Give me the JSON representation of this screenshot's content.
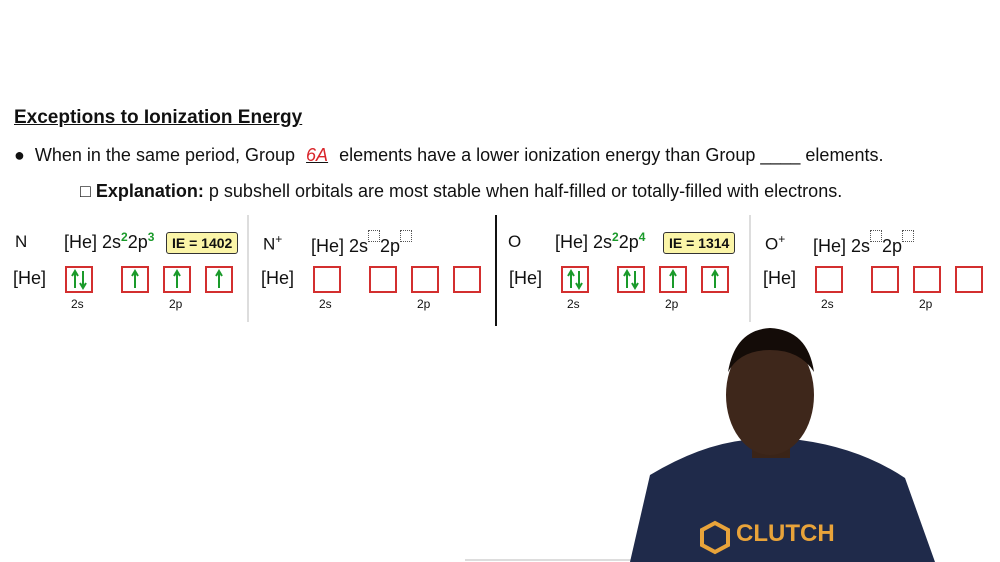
{
  "header": {
    "title": "Exceptions to Ionization Energy"
  },
  "bullet": {
    "before": "When in the same period, Group",
    "handwritten_answer": "6A",
    "middle": "elements have a lower ionization energy than Group",
    "blank": "____",
    "after": "elements."
  },
  "explanation": {
    "label": "Explanation:",
    "text": "p subshell orbitals are most stable when half-filled or totally-filled with electrons."
  },
  "panels": [
    {
      "symbol": "N",
      "core": "[He]",
      "s_orbital": "2s",
      "s_electrons": "2",
      "p_orbital": "2p",
      "p_electrons": "3",
      "ie": "IE = 1402",
      "diagram_core": "[He]",
      "s_label": "2s",
      "p_label": "2p"
    },
    {
      "symbol": "N",
      "charge": "+",
      "core": "[He]",
      "s_orbital": "2s",
      "p_orbital": "2p",
      "diagram_core": "[He]",
      "s_label": "2s",
      "p_label": "2p"
    },
    {
      "symbol": "O",
      "core": "[He]",
      "s_orbital": "2s",
      "s_electrons": "2",
      "p_orbital": "2p",
      "p_electrons": "4",
      "ie": "IE = 1314",
      "diagram_core": "[He]",
      "s_label": "2s",
      "p_label": "2p"
    },
    {
      "symbol": "O",
      "charge": "+",
      "core": "[He]",
      "s_orbital": "2s",
      "p_orbital": "2p",
      "diagram_core": "[He]",
      "s_label": "2s",
      "p_label": "2p"
    }
  ],
  "shirt_logo": "CLUTCH"
}
